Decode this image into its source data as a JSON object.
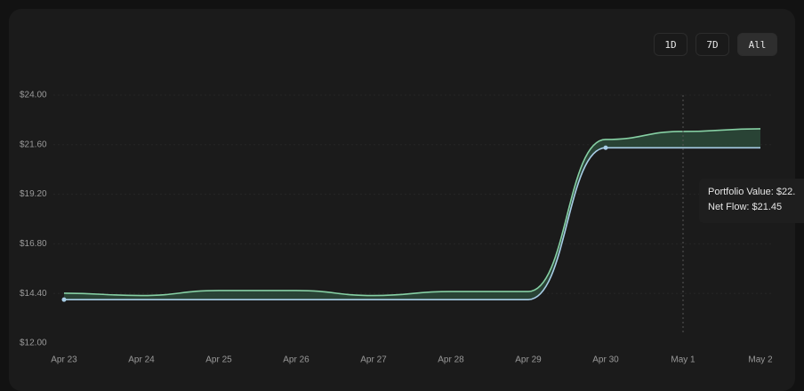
{
  "range_buttons": [
    "1D",
    "7D",
    "All"
  ],
  "chart_data": {
    "type": "line",
    "categories": [
      "Apr 23",
      "Apr 24",
      "Apr 25",
      "Apr 26",
      "Apr 27",
      "Apr 28",
      "Apr 29",
      "Apr 30",
      "May 1",
      "May 2"
    ],
    "series": [
      {
        "color": "#86d0a4",
        "values": [
          14.41,
          14.3,
          14.54,
          14.54,
          14.3,
          14.49,
          14.49,
          21.85,
          22.24,
          22.37
        ]
      },
      {
        "color": "#a8cde6",
        "values": [
          14.1,
          14.1,
          14.1,
          14.1,
          14.1,
          14.1,
          14.1,
          21.45,
          21.45,
          21.45
        ]
      }
    ],
    "ylim": [
      12,
      24
    ],
    "yticks": [
      {
        "value": 12,
        "label": "$12.00"
      },
      {
        "value": 14.4,
        "label": "$14.40"
      },
      {
        "value": 16.8,
        "label": "$16.80"
      },
      {
        "value": 19.2,
        "label": "$19.20"
      },
      {
        "value": 21.6,
        "label": "$21.60"
      },
      {
        "value": 24,
        "label": "$24.00"
      }
    ],
    "grid": true,
    "tooltip": [
      "Portfolio Value: $22.",
      "Net Flow: $21.45"
    ]
  }
}
